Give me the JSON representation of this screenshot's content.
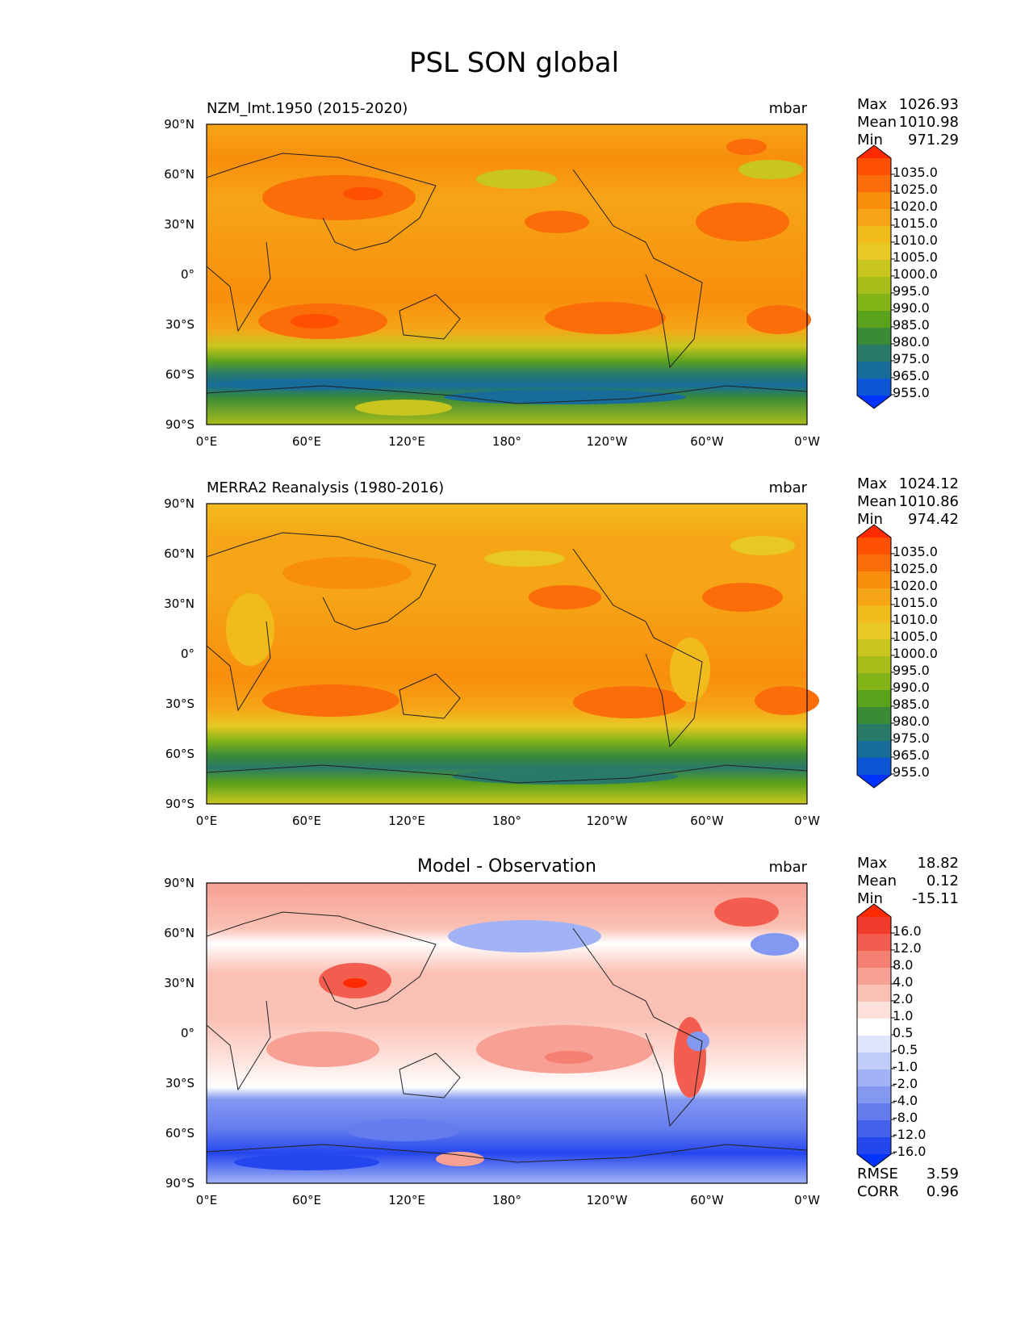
{
  "figure": {
    "title": "PSL SON global"
  },
  "axes": {
    "lat_labels": [
      "90°N",
      "60°N",
      "30°N",
      "0°",
      "30°S",
      "60°S",
      "90°S"
    ],
    "lon_labels": [
      "0°E",
      "60°E",
      "120°E",
      "180°",
      "120°W",
      "60°W",
      "0°W"
    ]
  },
  "panels": [
    {
      "id": "model",
      "title": "NZM_lmt.1950 (2015-2020)",
      "units": "mbar",
      "stats": [
        {
          "label": "Max",
          "value": "1026.93"
        },
        {
          "label": "Mean",
          "value": "1010.98"
        },
        {
          "label": "Min",
          "value": "971.29"
        }
      ],
      "colorbar": {
        "labels": [
          "1035.0",
          "1025.0",
          "1020.0",
          "1015.0",
          "1010.0",
          "1005.0",
          "1000.0",
          "995.0",
          "990.0",
          "985.0",
          "980.0",
          "975.0",
          "965.0",
          "955.0"
        ],
        "colors": [
          "#ff2a00",
          "#ff4f00",
          "#fb6d08",
          "#f98e0c",
          "#f6a516",
          "#f2bb1c",
          "#e7c825",
          "#c8c61f",
          "#a8bd1a",
          "#82b417",
          "#5aa11c",
          "#3a8a38",
          "#2a7a6a",
          "#176c99",
          "#0b56d6",
          "#0033ff"
        ]
      },
      "map": {
        "type": "filled-contour",
        "dominant_level": "1010.0–1015.0",
        "highs": [
          "North Atlantic ~1020",
          "South Indian ~1025",
          "South Pacific ~1020",
          "Siberia ~1020"
        ],
        "lows": [
          "Southern Ocean ~965-975",
          "Aleutian ~1000",
          "Icelandic ~1000"
        ]
      }
    },
    {
      "id": "obs",
      "title": "MERRA2 Reanalysis (1980-2016)",
      "units": "mbar",
      "stats": [
        {
          "label": "Max",
          "value": "1024.12"
        },
        {
          "label": "Mean",
          "value": "1010.86"
        },
        {
          "label": "Min",
          "value": "974.42"
        }
      ],
      "colorbar": {
        "labels": [
          "1035.0",
          "1025.0",
          "1020.0",
          "1015.0",
          "1010.0",
          "1005.0",
          "1000.0",
          "995.0",
          "990.0",
          "985.0",
          "980.0",
          "975.0",
          "965.0",
          "955.0"
        ],
        "colors": [
          "#ff2a00",
          "#ff4f00",
          "#fb6d08",
          "#f98e0c",
          "#f6a516",
          "#f2bb1c",
          "#e7c825",
          "#c8c61f",
          "#a8bd1a",
          "#82b417",
          "#5aa11c",
          "#3a8a38",
          "#2a7a6a",
          "#176c99",
          "#0b56d6",
          "#0033ff"
        ]
      },
      "map": {
        "type": "filled-contour",
        "dominant_level": "1010.0–1015.0",
        "highs": [
          "North Atlantic ~1020",
          "South Indian ~1020",
          "South Pacific ~1020"
        ],
        "lows": [
          "Southern Ocean ~975-980",
          "Aleutian ~1005",
          "Icelandic ~1005"
        ]
      }
    },
    {
      "id": "diff",
      "title": "Model - Observation",
      "units": "mbar",
      "stats": [
        {
          "label": "Max",
          "value": "18.82"
        },
        {
          "label": "Mean",
          "value": "0.12"
        },
        {
          "label": "Min",
          "value": "-15.11"
        }
      ],
      "extra_stats": [
        {
          "label": "RMSE",
          "value": "3.59"
        },
        {
          "label": "CORR",
          "value": "0.96"
        }
      ],
      "colorbar": {
        "labels": [
          "16.0",
          "12.0",
          "8.0",
          "4.0",
          "2.0",
          "1.0",
          "0.5",
          "-0.5",
          "-1.0",
          "-2.0",
          "-4.0",
          "-8.0",
          "-12.0",
          "-16.0"
        ],
        "colors": [
          "#ff2a00",
          "#f03c2c",
          "#f25d4f",
          "#f57f70",
          "#f7a093",
          "#fac0b4",
          "#fde0da",
          "#ffffff",
          "#dfe6fb",
          "#c0cdf8",
          "#a2b3f5",
          "#8398f1",
          "#647ced",
          "#4461ea",
          "#2446ef",
          "#0033ff"
        ]
      },
      "map": {
        "type": "filled-contour",
        "positive_regions": [
          "Tibetan Plateau ~8",
          "Greenland ~8",
          "Andes ~8",
          "tropical Pacific ~4"
        ],
        "negative_regions": [
          "Southern Ocean ~-8",
          "Antarctic coast ~-12",
          "North Pacific ~-4",
          "Amazon ~-8"
        ]
      }
    }
  ]
}
